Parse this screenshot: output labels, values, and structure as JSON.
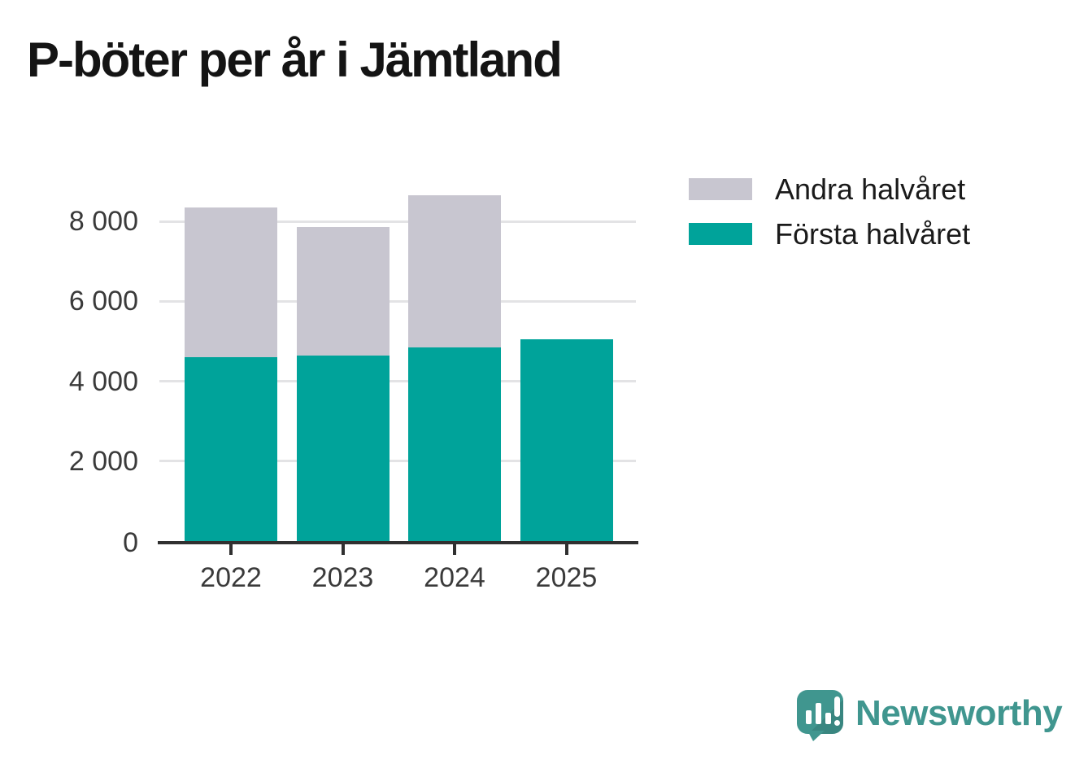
{
  "title": "P-böter per år i Jämtland",
  "chart_data": {
    "type": "bar",
    "stacked": true,
    "title": "P-böter per år i Jämtland",
    "categories": [
      "2022",
      "2023",
      "2024",
      "2025"
    ],
    "series": [
      {
        "name": "Första halvåret",
        "color": "#00a39a",
        "values": [
          4600,
          4650,
          4850,
          5050
        ]
      },
      {
        "name": "Andra halvåret",
        "color": "#c8c6d0",
        "values": [
          3750,
          3200,
          3800,
          null
        ]
      }
    ],
    "totals": [
      8350,
      7850,
      8650,
      5050
    ],
    "xlabel": "",
    "ylabel": "",
    "ylim": [
      0,
      8900
    ],
    "yticks": [
      {
        "value": 0,
        "label": "0"
      },
      {
        "value": 2000,
        "label": "2 000"
      },
      {
        "value": 4000,
        "label": "4 000"
      },
      {
        "value": 6000,
        "label": "6 000"
      },
      {
        "value": 8000,
        "label": "8 000"
      }
    ],
    "grid": "horizontal",
    "legend_position": "right"
  },
  "legend": {
    "items": [
      {
        "label": "Andra halvåret",
        "color": "#c8c6d0"
      },
      {
        "label": "Första halvåret",
        "color": "#00a39a"
      }
    ]
  },
  "branding": {
    "logo_text": "Newsworthy",
    "logo_icon": "newsworthy-speech-bubble-bar-chart-icon",
    "logo_color": "#40968f"
  },
  "colors": {
    "background": "#ffffff",
    "first_half_bar": "#00a39a",
    "second_half_bar": "#c8c6d0",
    "gridline": "#e3e3e5",
    "axis": "#303030",
    "tick_label": "#3a3a3a",
    "title_text": "#141414"
  }
}
